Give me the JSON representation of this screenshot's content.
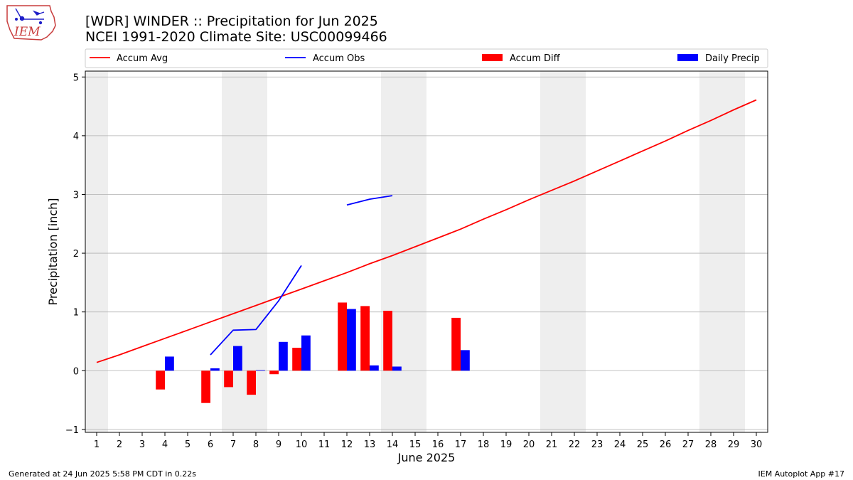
{
  "header": {
    "title_line1": "[WDR] WINDER :: Precipitation for Jun 2025",
    "title_line2": "NCEI 1991-2020 Climate Site: USC00099466",
    "logo_text": "IEM"
  },
  "footer": {
    "generated": "Generated at 24 Jun 2025 5:58 PM CDT in 0.22s",
    "app": "IEM Autoplot App #17"
  },
  "colors": {
    "accum_avg": "#ff0000",
    "accum_obs": "#0000ff",
    "accum_diff": "#ff0000",
    "daily_precip": "#0000ff",
    "weekend_band": "#eeeeee",
    "grid": "#b0b0b0"
  },
  "chart_data": {
    "type": "bar",
    "xlabel": "June 2025",
    "ylabel": "Precipitation [inch]",
    "xlim": [
      0.5,
      30.5
    ],
    "ylim": [
      -1.05,
      5.1
    ],
    "x_ticks": [
      1,
      2,
      3,
      4,
      5,
      6,
      7,
      8,
      9,
      10,
      11,
      12,
      13,
      14,
      15,
      16,
      17,
      18,
      19,
      20,
      21,
      22,
      23,
      24,
      25,
      26,
      27,
      28,
      29,
      30
    ],
    "y_ticks": [
      -1,
      0,
      1,
      2,
      3,
      4,
      5
    ],
    "grid": "horizontal",
    "legend_placement": "top",
    "weekends": [
      [
        0.5,
        1.5
      ],
      [
        6.5,
        8.5
      ],
      [
        13.5,
        15.5
      ],
      [
        20.5,
        22.5
      ],
      [
        27.5,
        29.5
      ]
    ],
    "legend": [
      {
        "label": "Accum Avg",
        "kind": "line",
        "color": "#ff0000"
      },
      {
        "label": "Accum Obs",
        "kind": "line",
        "color": "#0000ff"
      },
      {
        "label": "Accum Diff",
        "kind": "bar",
        "color": "#ff0000"
      },
      {
        "label": "Daily Precip",
        "kind": "bar",
        "color": "#0000ff"
      }
    ],
    "accum_avg": {
      "name": "Accum Avg",
      "x": [
        1,
        2,
        3,
        4,
        5,
        6,
        7,
        8,
        9,
        10,
        11,
        12,
        13,
        14,
        15,
        16,
        17,
        18,
        19,
        20,
        21,
        22,
        23,
        24,
        25,
        26,
        27,
        28,
        29,
        30
      ],
      "y": [
        0.14,
        0.27,
        0.41,
        0.55,
        0.69,
        0.83,
        0.97,
        1.11,
        1.25,
        1.39,
        1.53,
        1.67,
        1.82,
        1.96,
        2.11,
        2.26,
        2.41,
        2.58,
        2.74,
        2.91,
        3.07,
        3.23,
        3.4,
        3.57,
        3.74,
        3.91,
        4.09,
        4.26,
        4.44,
        4.61
      ]
    },
    "accum_obs": {
      "name": "Accum Obs",
      "segments": [
        {
          "x": [
            6,
            7,
            8,
            9,
            10
          ],
          "y": [
            0.27,
            0.69,
            0.7,
            1.19,
            1.79
          ]
        },
        {
          "x": [
            12,
            13,
            14
          ],
          "y": [
            2.82,
            2.92,
            2.98
          ]
        }
      ]
    },
    "accum_diff": {
      "name": "Accum Diff",
      "x": [
        4,
        6,
        7,
        8,
        9,
        10,
        12,
        13,
        14,
        17
      ],
      "y": [
        -0.32,
        -0.55,
        -0.28,
        -0.41,
        -0.06,
        0.39,
        1.16,
        1.1,
        1.02,
        0.9
      ]
    },
    "daily_precip": {
      "name": "Daily Precip",
      "x": [
        4,
        6,
        7,
        8,
        10,
        9,
        12,
        13,
        14,
        17
      ],
      "y": [
        0.24,
        0.04,
        0.42,
        0.01,
        0.6,
        0.49,
        1.05,
        0.09,
        0.07,
        0.35
      ]
    }
  }
}
